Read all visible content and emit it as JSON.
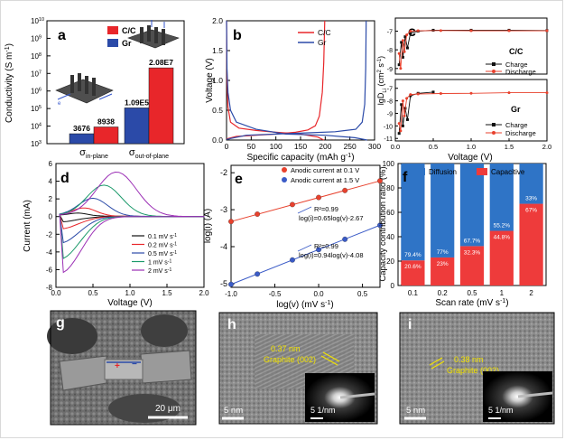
{
  "colors": {
    "cc": "#e8262a",
    "gr": "#2b4aa8",
    "charge": "#111111",
    "discharge": "#e8412d",
    "diffusion": "#2f74c6",
    "capacitive": "#ee3b3b",
    "tem_text": "#f2e300"
  },
  "chart_data": [
    {
      "panel": "a",
      "type": "bar",
      "ylabel": "Conductivity (S m",
      "ylabel_sup": "-1",
      "ylabel_close": ")",
      "yscale": "log",
      "ylim": [
        1000,
        10000000000
      ],
      "yticks": [
        {
          "v": 1000,
          "e": "3"
        },
        {
          "v": 10000,
          "e": "4"
        },
        {
          "v": 100000,
          "e": "5"
        },
        {
          "v": 1000000,
          "e": "6"
        },
        {
          "v": 10000000,
          "e": "7"
        },
        {
          "v": 100000000,
          "e": "8"
        },
        {
          "v": 1000000000,
          "e": "9"
        },
        {
          "v": 10000000000,
          "e": "10"
        }
      ],
      "tick_base": "10",
      "categories": [
        {
          "main": "σ",
          "sub": "in-plane"
        },
        {
          "main": "σ",
          "sub": "out-of-plane"
        }
      ],
      "series": [
        {
          "name": "C/C",
          "values": [
            8938,
            20800000
          ],
          "labels": [
            "8938",
            "2.08E7"
          ]
        },
        {
          "name": "Gr",
          "values": [
            3676,
            109000
          ],
          "labels": [
            "3676",
            "1.09E5"
          ]
        }
      ],
      "schematic_arrow_label": "e"
    },
    {
      "panel": "b",
      "type": "line",
      "xlabel": "Specific capacity (mAh g",
      "xlabel_sup": "-1",
      "xlabel_close": ")",
      "ylabel": "Voltage (V)",
      "xlim": [
        0,
        300
      ],
      "ylim": [
        0,
        2
      ],
      "xticks": [
        "0",
        "50",
        "100",
        "150",
        "200",
        "250",
        "300"
      ],
      "yticks": [
        "0.0",
        "0.5",
        "1.0",
        "1.5",
        "2.0"
      ],
      "series": [
        {
          "name": "C/C",
          "charge": [
            [
              0,
              0.02
            ],
            [
              20,
              0.06
            ],
            [
              60,
              0.08
            ],
            [
              100,
              0.1
            ],
            [
              140,
              0.13
            ],
            [
              165,
              0.17
            ],
            [
              180,
              0.24
            ],
            [
              188,
              0.4
            ],
            [
              194,
              0.8
            ],
            [
              197,
              1.3
            ],
            [
              199,
              2.0
            ]
          ],
          "discharge": [
            [
              0,
              2.0
            ],
            [
              1,
              1.0
            ],
            [
              3,
              0.55
            ],
            [
              8,
              0.3
            ],
            [
              25,
              0.2
            ],
            [
              60,
              0.16
            ],
            [
              100,
              0.13
            ],
            [
              150,
              0.1
            ],
            [
              185,
              0.05
            ],
            [
              197,
              0.0
            ]
          ]
        },
        {
          "name": "Gr",
          "charge": [
            [
              0,
              0.01
            ],
            [
              40,
              0.08
            ],
            [
              100,
              0.1
            ],
            [
              160,
              0.12
            ],
            [
              220,
              0.14
            ],
            [
              262,
              0.18
            ],
            [
              275,
              0.3
            ],
            [
              280,
              0.6
            ],
            [
              282,
              1.2
            ],
            [
              283,
              2.0
            ]
          ],
          "discharge": [
            [
              0,
              2.0
            ],
            [
              1,
              1.2
            ],
            [
              3,
              0.8
            ],
            [
              8,
              0.5
            ],
            [
              20,
              0.3
            ],
            [
              60,
              0.18
            ],
            [
              120,
              0.1
            ],
            [
              200,
              0.08
            ],
            [
              260,
              0.04
            ],
            [
              285,
              0.0
            ]
          ]
        }
      ]
    },
    {
      "panel": "c",
      "type": "line",
      "ylabel": "lgD",
      "ylabel_sub": "Li",
      "ylabel_unit": " (cm",
      "ylabel_sup": "2",
      "ylabel_unit2": " s",
      "ylabel_sup2": "-1",
      "ylabel_close": ")",
      "xlabel": "Voltage (V)",
      "xlim": [
        0,
        2
      ],
      "xticks": [
        "0.0",
        "0.5",
        "1.0",
        "1.5",
        "2.0"
      ],
      "subplots": [
        {
          "label": "C/C",
          "ylim": [
            -9.3,
            -6.3
          ],
          "yticks": [
            "-7",
            "-8",
            "-9"
          ],
          "series": [
            {
              "name": "Charge",
              "points": [
                [
                  0.05,
                  -8.8
                ],
                [
                  0.08,
                  -7.6
                ],
                [
                  0.1,
                  -8.4
                ],
                [
                  0.13,
                  -7.3
                ],
                [
                  0.16,
                  -7.9
                ],
                [
                  0.2,
                  -7.1
                ],
                [
                  0.3,
                  -7.0
                ],
                [
                  0.5,
                  -6.95
                ],
                [
                  1.0,
                  -6.95
                ],
                [
                  1.5,
                  -6.95
                ],
                [
                  2.0,
                  -6.97
                ]
              ]
            },
            {
              "name": "Discharge",
              "points": [
                [
                  0.05,
                  -8.2
                ],
                [
                  0.07,
                  -9.0
                ],
                [
                  0.1,
                  -7.5
                ],
                [
                  0.12,
                  -8.1
                ],
                [
                  0.15,
                  -7.2
                ],
                [
                  0.2,
                  -7.0
                ],
                [
                  0.3,
                  -6.98
                ],
                [
                  0.6,
                  -6.97
                ],
                [
                  1.0,
                  -6.98
                ],
                [
                  1.5,
                  -6.98
                ],
                [
                  2.0,
                  -6.98
                ]
              ]
            }
          ]
        },
        {
          "label": "Gr",
          "ylim": [
            -11.2,
            -6.3
          ],
          "yticks": [
            "-7",
            "-8",
            "-9",
            "-10",
            "-11"
          ],
          "series": [
            {
              "name": "Charge",
              "points": [
                [
                  0.05,
                  -10.6
                ],
                [
                  0.08,
                  -8.3
                ],
                [
                  0.1,
                  -10.0
                ],
                [
                  0.13,
                  -8.6
                ],
                [
                  0.16,
                  -9.5
                ],
                [
                  0.2,
                  -7.6
                ],
                [
                  0.3,
                  -7.4
                ],
                [
                  0.5,
                  -7.3
                ]
              ]
            },
            {
              "name": "Discharge",
              "points": [
                [
                  0.05,
                  -9.8
                ],
                [
                  0.07,
                  -10.4
                ],
                [
                  0.1,
                  -8.0
                ],
                [
                  0.12,
                  -9.2
                ],
                [
                  0.15,
                  -7.8
                ],
                [
                  0.2,
                  -7.5
                ],
                [
                  0.3,
                  -7.45
                ],
                [
                  0.6,
                  -7.42
                ],
                [
                  1.0,
                  -7.4
                ],
                [
                  1.5,
                  -7.35
                ],
                [
                  2.0,
                  -7.35
                ]
              ]
            }
          ]
        }
      ]
    },
    {
      "panel": "d",
      "type": "line",
      "xlabel": "Voltage (V)",
      "ylabel": "Current (mA)",
      "xlim": [
        0,
        2
      ],
      "ylim": [
        -8,
        6
      ],
      "xticks": [
        "0.0",
        "0.5",
        "1.0",
        "1.5",
        "2.0"
      ],
      "yticks": [
        "-8",
        "-6",
        "-4",
        "-2",
        "0",
        "2",
        "4",
        "6"
      ],
      "series": [
        {
          "name": "0.1 mV s",
          "sup": "-1",
          "ipeak": 0.3,
          "vpeak": 0.3,
          "imin": -0.6
        },
        {
          "name": "0.2 mV s",
          "sup": "-1",
          "ipeak": 0.9,
          "vpeak": 0.38,
          "imin": -1.4
        },
        {
          "name": "0.5 mV s",
          "sup": "-1",
          "ipeak": 2.0,
          "vpeak": 0.5,
          "imin": -3.0
        },
        {
          "name": "1 mV s",
          "sup": "-1",
          "ipeak": 3.5,
          "vpeak": 0.65,
          "imin": -4.8
        },
        {
          "name": "2 mV s",
          "sup": "-1",
          "ipeak": 5.0,
          "vpeak": 0.82,
          "imin": -6.4
        }
      ]
    },
    {
      "panel": "e",
      "type": "scatter",
      "xlabel": "log(v) (mV s",
      "xlabel_sup": "-1",
      "xlabel_close": ")",
      "ylabel": "log(i) (A)",
      "xlim": [
        -1.0,
        0.7
      ],
      "ylim": [
        -5.1,
        -1.8
      ],
      "xticks": [
        "-1.0",
        "-0.5",
        "0.0",
        "0.5"
      ],
      "yticks": [
        "-2",
        "-3",
        "-4",
        "-5"
      ],
      "series": [
        {
          "name": "Anodic current at 0.1 V",
          "x": [
            -1.0,
            -0.7,
            -0.3,
            0.0,
            0.3,
            0.7
          ],
          "y": [
            -3.32,
            -3.12,
            -2.86,
            -2.67,
            -2.48,
            -2.22
          ],
          "r2": "R²=0.99",
          "fit": "log(i)=0.65log(v)-2.67"
        },
        {
          "name": "Anodic current at 1.5 V",
          "x": [
            -1.0,
            -0.7,
            -0.3,
            0.0,
            0.3,
            0.7
          ],
          "y": [
            -5.02,
            -4.74,
            -4.36,
            -4.08,
            -3.8,
            -3.42
          ],
          "r2": "R²=0.99",
          "fit": "log(i)=0.94log(v)-4.08"
        }
      ]
    },
    {
      "panel": "f",
      "type": "bar",
      "stacked": true,
      "xlabel": "Scan rate (mV s",
      "xlabel_sup": "-1",
      "xlabel_close": ")",
      "ylabel": "Capacity contribution ratio (%)",
      "ylim": [
        0,
        100
      ],
      "yticks": [
        "0",
        "20",
        "40",
        "60",
        "80",
        "100"
      ],
      "categories": [
        "0.1",
        "0.2",
        "0.5",
        "1",
        "2"
      ],
      "series": [
        {
          "name": "Capacitive",
          "values": [
            20.6,
            23,
            32.3,
            44.8,
            67
          ],
          "labels": [
            "20.6%",
            "23%",
            "32.3%",
            "44.8%",
            "67%"
          ]
        },
        {
          "name": "Diffusion",
          "values": [
            79.4,
            77,
            67.7,
            55.2,
            33
          ],
          "labels": [
            "79.4%",
            "77%",
            "67.7%",
            "55.2%",
            "33%"
          ]
        }
      ]
    }
  ],
  "images": [
    {
      "panel": "g",
      "scale_bar": "20 μm"
    },
    {
      "panel": "h",
      "spacing": "0.37 nm",
      "plane": "Graphite (002)",
      "scale_bar": "5 nm",
      "inset_scale": "5 1/nm"
    },
    {
      "panel": "i",
      "spacing": "0.38 nm",
      "plane": "Graphite (002)",
      "scale_bar": "5 nm",
      "inset_scale": "5 1/nm"
    }
  ]
}
